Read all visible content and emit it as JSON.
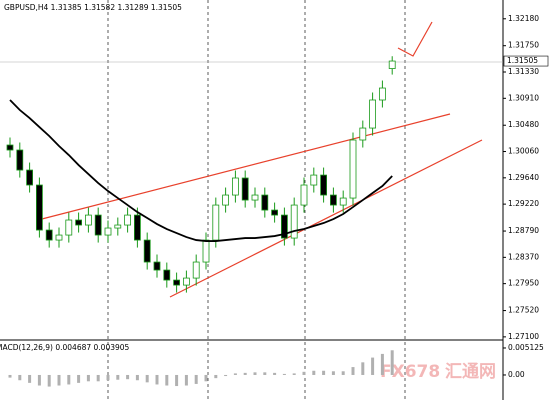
{
  "chart_data": {
    "type": "candlestick",
    "title": "GBPUSD,H4 1.31385 1.31582 1.31289 1.31505",
    "current_price": {
      "value": 1.31505,
      "label": "1.31505"
    },
    "ylim": [
      1.2705,
      1.3248
    ],
    "yticks": [
      {
        "value": 1.3218,
        "label": "1.32180"
      },
      {
        "value": 1.3175,
        "label": "1.31750"
      },
      {
        "value": 1.3133,
        "label": "1.31330"
      },
      {
        "value": 1.3091,
        "label": "1.30910"
      },
      {
        "value": 1.3048,
        "label": "1.30480"
      },
      {
        "value": 1.3006,
        "label": "1.30060"
      },
      {
        "value": 1.2964,
        "label": "1.29640"
      },
      {
        "value": 1.2922,
        "label": "1.29220"
      },
      {
        "value": 1.2879,
        "label": "1.28790"
      },
      {
        "value": 1.2837,
        "label": "1.28370"
      },
      {
        "value": 1.2795,
        "label": "1.27950"
      },
      {
        "value": 1.2752,
        "label": "1.27520"
      },
      {
        "value": 1.271,
        "label": "1.27100"
      }
    ],
    "colors": {
      "up": "#ffffff",
      "down": "#000000",
      "outline": "#1a9a1a"
    },
    "open": [
      1.30164,
      1.30084,
      1.29764,
      1.29525,
      1.28806,
      1.28646,
      1.28726,
      1.28966,
      1.28886,
      1.29045,
      1.28726,
      1.28838,
      1.28886,
      1.29045,
      1.28646,
      1.28295,
      1.28167,
      1.28007,
      1.27927,
      1.28039,
      1.28295,
      1.28646,
      1.29205,
      1.29365,
      1.29637,
      1.29285,
      1.29365,
      1.29125,
      1.29045,
      1.28678,
      1.29205,
      1.29525,
      1.29684,
      1.29365,
      1.29205,
      1.29317,
      1.30244,
      1.30435,
      1.30883,
      1.31385
    ],
    "high": [
      1.30284,
      1.30204,
      1.29884,
      1.29645,
      1.28926,
      1.28846,
      1.29086,
      1.29086,
      1.29165,
      1.29165,
      1.28958,
      1.29006,
      1.29165,
      1.29165,
      1.28766,
      1.28415,
      1.28287,
      1.28127,
      1.28159,
      1.28415,
      1.28766,
      1.29325,
      1.29485,
      1.29757,
      1.29757,
      1.29485,
      1.29485,
      1.29245,
      1.29165,
      1.29325,
      1.29645,
      1.29804,
      1.29804,
      1.29485,
      1.29437,
      1.30364,
      1.30555,
      1.31003,
      1.31194,
      1.31582
    ],
    "low": [
      1.29964,
      1.29644,
      1.29405,
      1.28686,
      1.28526,
      1.28526,
      1.28606,
      1.28766,
      1.28766,
      1.28606,
      1.28606,
      1.28718,
      1.28766,
      1.28526,
      1.28175,
      1.28047,
      1.27887,
      1.27807,
      1.27807,
      1.27919,
      1.28175,
      1.28526,
      1.29085,
      1.29245,
      1.29165,
      1.29165,
      1.29005,
      1.28925,
      1.28558,
      1.28558,
      1.29085,
      1.29405,
      1.29245,
      1.29085,
      1.29085,
      1.29197,
      1.30124,
      1.30315,
      1.30763,
      1.31289
    ],
    "close": [
      1.30084,
      1.29764,
      1.29525,
      1.28806,
      1.28646,
      1.28726,
      1.28966,
      1.28886,
      1.29045,
      1.28726,
      1.28838,
      1.28886,
      1.29045,
      1.28646,
      1.28295,
      1.28167,
      1.28007,
      1.27927,
      1.28039,
      1.28295,
      1.28646,
      1.29205,
      1.29365,
      1.29637,
      1.29285,
      1.29365,
      1.29125,
      1.29045,
      1.28678,
      1.29205,
      1.29525,
      1.29684,
      1.29365,
      1.29205,
      1.29317,
      1.30244,
      1.30435,
      1.30883,
      1.31074,
      1.31505
    ],
    "moving_average": {
      "color": "#000000",
      "values": [
        1.30883,
        1.30723,
        1.30595,
        1.30451,
        1.30308,
        1.30148,
        1.30004,
        1.29844,
        1.297,
        1.29557,
        1.29429,
        1.29317,
        1.29205,
        1.29093,
        1.28998,
        1.28902,
        1.28822,
        1.28758,
        1.28694,
        1.28646,
        1.2863,
        1.2863,
        1.28646,
        1.28662,
        1.28678,
        1.28678,
        1.28694,
        1.2871,
        1.28742,
        1.2879,
        1.28822,
        1.2887,
        1.28918,
        1.28982,
        1.29062,
        1.29173,
        1.29285,
        1.29397,
        1.29509,
        1.29669
      ]
    },
    "macd": {
      "title": "MACD(12,26,9) 0.004687 0.003905",
      "color": "#b0b0b0",
      "ylim": [
        -0.00475,
        0.00626
      ],
      "yticks": [
        {
          "value": 0.005125,
          "label": "0.005125"
        },
        {
          "value": 0,
          "label": "0.00"
        }
      ],
      "values": [
        -0.0005,
        -0.001,
        -0.0015,
        -0.002,
        -0.0022,
        -0.002,
        -0.0018,
        -0.0015,
        -0.0012,
        -0.0012,
        -0.001,
        -0.0009,
        -0.0008,
        -0.001,
        -0.0014,
        -0.0018,
        -0.002,
        -0.0021,
        -0.002,
        -0.0017,
        -0.0012,
        -0.0006,
        -0.0002,
        0.0003,
        0.0004,
        0.0005,
        0.0005,
        0.0004,
        0.0002,
        0.0003,
        0.0006,
        0.0008,
        0.0008,
        0.0007,
        0.0007,
        0.0015,
        0.0024,
        0.0033,
        0.004,
        0.004687
      ]
    },
    "watermark": [
      "FX678",
      "汇通网"
    ]
  }
}
